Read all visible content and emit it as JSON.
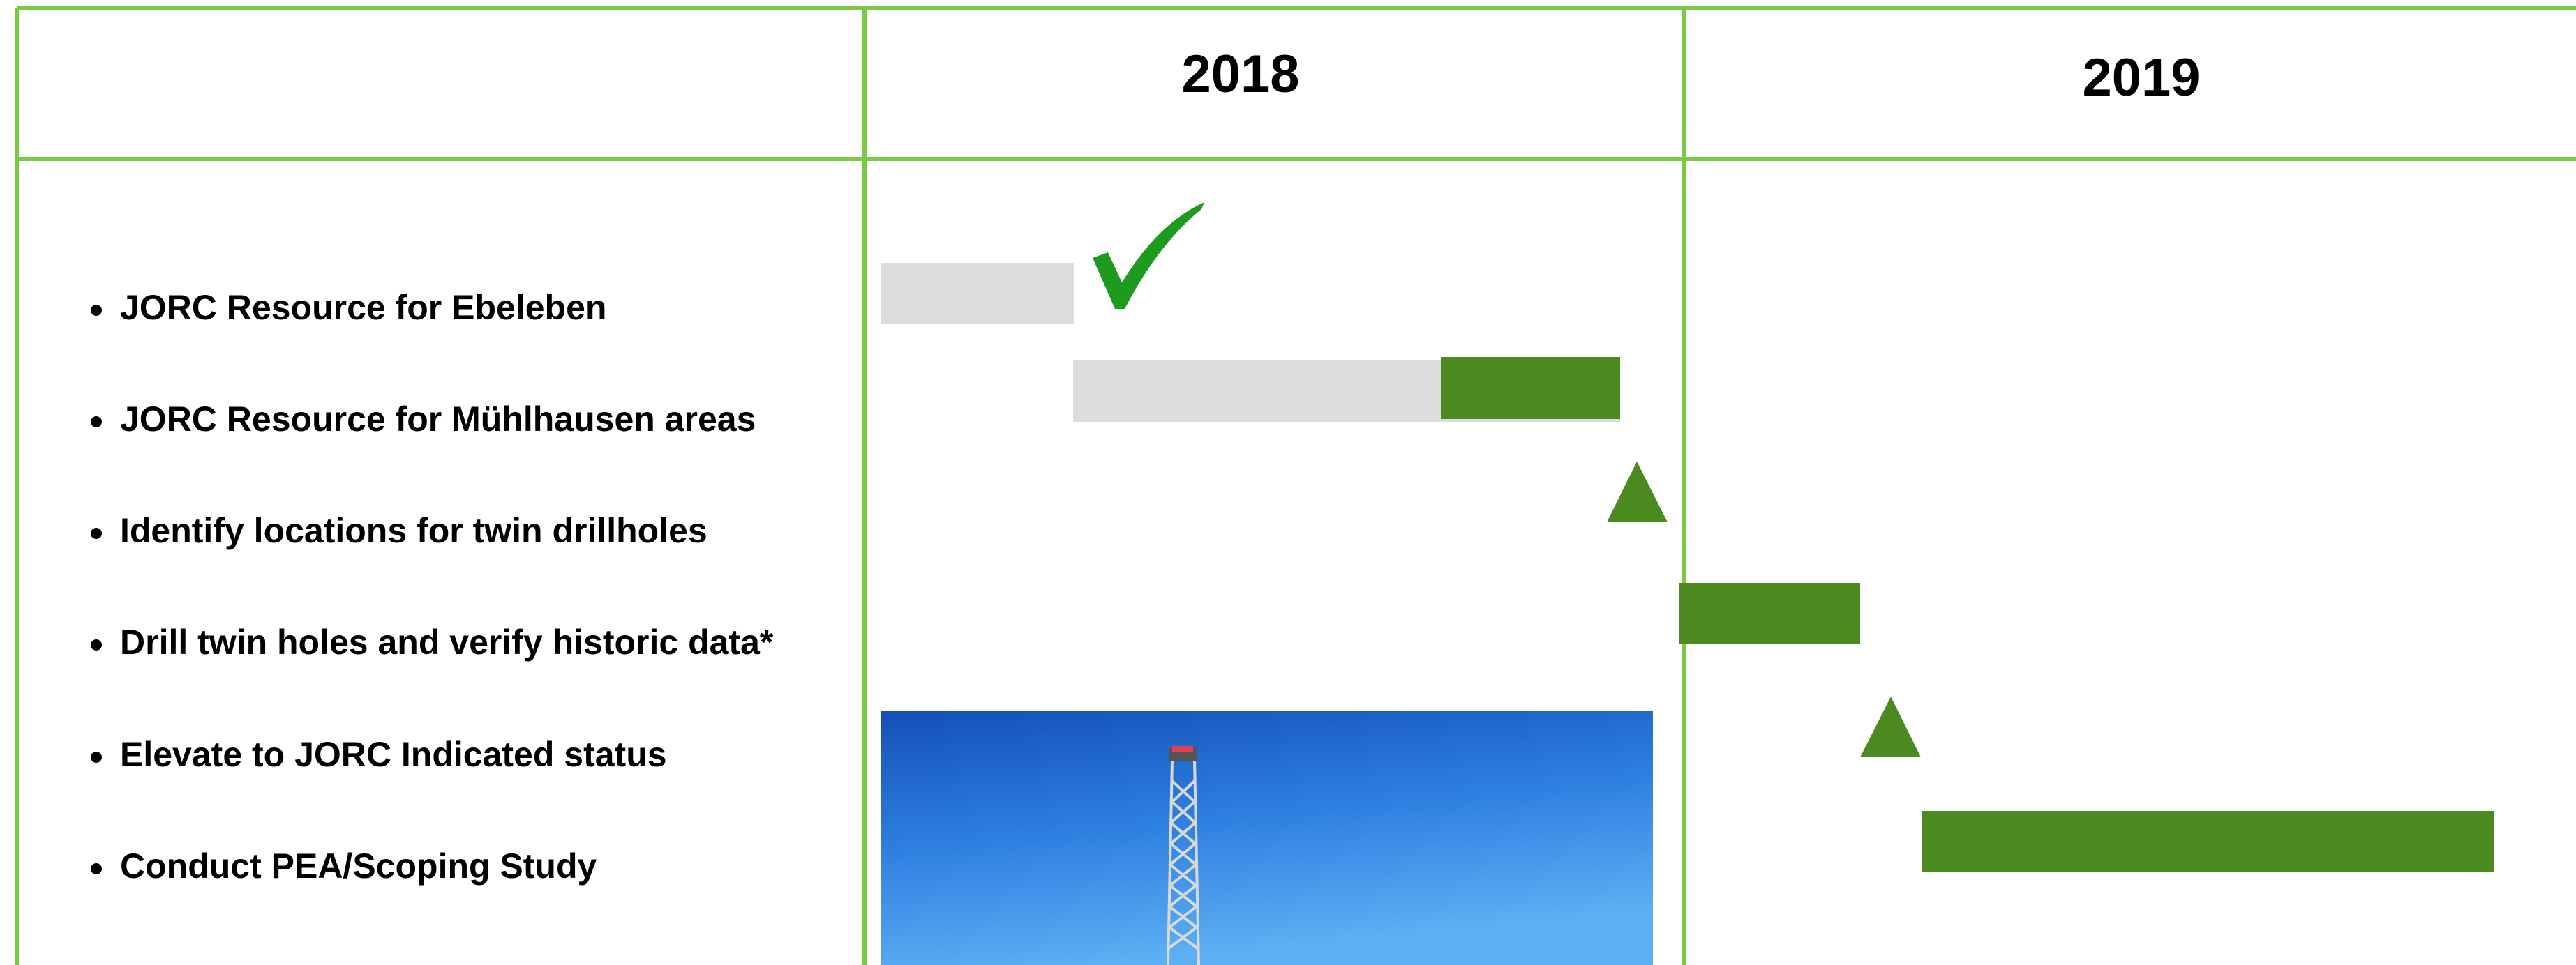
{
  "header": {
    "columns": [
      "2018",
      "2019"
    ]
  },
  "tasks": [
    "JORC Resource for Ebeleben",
    "JORC Resource for Mühlhausen areas",
    "Identify locations for twin drillholes",
    "Drill twin holes and verify historic data*",
    "Elevate to JORC Indicated status",
    "Conduct PEA/Scoping Study"
  ]
}
